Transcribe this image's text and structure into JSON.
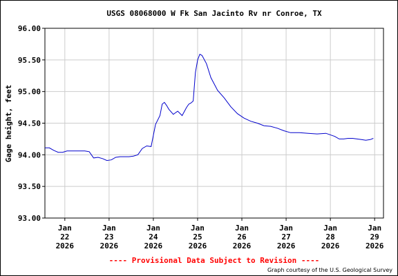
{
  "chart_data": {
    "type": "line",
    "title": "USGS 08068000 W Fk San Jacinto Rv nr Conroe, TX",
    "ylabel": "Gage height, feet",
    "xlabel": "",
    "ylim": [
      93.0,
      96.0
    ],
    "yticks": [
      "93.00",
      "93.50",
      "94.00",
      "94.50",
      "95.00",
      "95.50",
      "96.00"
    ],
    "xlim": [
      21.55,
      29.2
    ],
    "xticks": [
      {
        "pos": 22,
        "month": "Jan",
        "day": "22",
        "year": "2026"
      },
      {
        "pos": 23,
        "month": "Jan",
        "day": "23",
        "year": "2026"
      },
      {
        "pos": 24,
        "month": "Jan",
        "day": "24",
        "year": "2026"
      },
      {
        "pos": 25,
        "month": "Jan",
        "day": "25",
        "year": "2026"
      },
      {
        "pos": 26,
        "month": "Jan",
        "day": "26",
        "year": "2026"
      },
      {
        "pos": 27,
        "month": "Jan",
        "day": "27",
        "year": "2026"
      },
      {
        "pos": 28,
        "month": "Jan",
        "day": "28",
        "year": "2026"
      },
      {
        "pos": 29,
        "month": "Jan",
        "day": "29",
        "year": "2026"
      }
    ],
    "grid": true,
    "line_color": "#0000cc",
    "series": [
      {
        "x": [
          21.55,
          21.65,
          21.75,
          21.85,
          21.95,
          22.05,
          22.15,
          22.25,
          22.35,
          22.45,
          22.55,
          22.65,
          22.75,
          22.85,
          22.95,
          23.05,
          23.15,
          23.25,
          23.35,
          23.45,
          23.55,
          23.65,
          23.75,
          23.85,
          23.95,
          24.05,
          24.15,
          24.2,
          24.25,
          24.3,
          24.35,
          24.45,
          24.55,
          24.65,
          24.75,
          24.8,
          24.85,
          24.9,
          24.95,
          25.0,
          25.05,
          25.1,
          25.2,
          25.3,
          25.45,
          25.6,
          25.75,
          25.9,
          26.05,
          26.2,
          26.35,
          26.5,
          26.65,
          26.8,
          26.95,
          27.1,
          27.3,
          27.5,
          27.7,
          27.9,
          28.1,
          28.2,
          28.3,
          28.4,
          28.5,
          28.6,
          28.7,
          28.8,
          28.9,
          28.97
        ],
        "y": [
          94.11,
          94.11,
          94.07,
          94.04,
          94.04,
          94.06,
          94.06,
          94.06,
          94.06,
          94.06,
          94.05,
          93.95,
          93.96,
          93.94,
          93.91,
          93.92,
          93.96,
          93.97,
          93.97,
          93.97,
          93.98,
          94.0,
          94.1,
          94.14,
          94.13,
          94.48,
          94.62,
          94.8,
          94.83,
          94.78,
          94.72,
          94.64,
          94.69,
          94.62,
          94.75,
          94.8,
          94.82,
          94.85,
          95.3,
          95.5,
          95.59,
          95.57,
          95.44,
          95.22,
          95.02,
          94.9,
          94.76,
          94.65,
          94.58,
          94.53,
          94.5,
          94.46,
          94.45,
          94.42,
          94.38,
          94.35,
          94.35,
          94.34,
          94.33,
          94.34,
          94.29,
          94.25,
          94.25,
          94.26,
          94.26,
          94.25,
          94.24,
          94.23,
          94.24,
          94.26
        ]
      }
    ]
  },
  "provisional_notice": "---- Provisional Data Subject to Revision ----",
  "credit": "Graph courtesy of the U.S. Geological Survey",
  "colors": {
    "line": "#0000cc",
    "grid": "#cccccc",
    "provisional": "#ff0000"
  }
}
